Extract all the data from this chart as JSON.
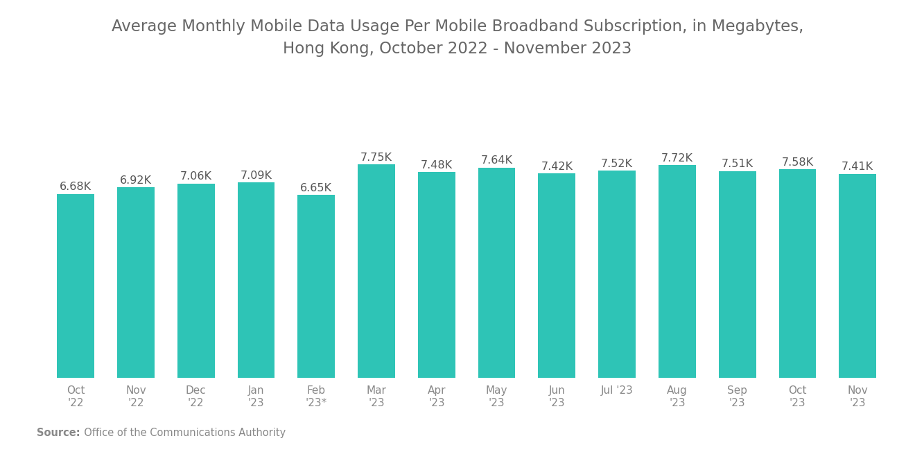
{
  "title": "Average Monthly Mobile Data Usage Per Mobile Broadband Subscription, in Megabytes,\nHong Kong, October 2022 - November 2023",
  "categories": [
    "Oct\n'22",
    "Nov\n'22",
    "Dec\n'22",
    "Jan\n'23",
    "Feb\n'23*",
    "Mar\n'23",
    "Apr\n'23",
    "May\n'23",
    "Jun\n'23",
    "Jul '23",
    "Aug\n'23",
    "Sep\n'23",
    "Oct\n'23",
    "Nov\n'23"
  ],
  "values": [
    6680,
    6920,
    7060,
    7090,
    6650,
    7750,
    7480,
    7640,
    7420,
    7520,
    7720,
    7510,
    7580,
    7410
  ],
  "labels": [
    "6.68K",
    "6.92K",
    "7.06K",
    "7.09K",
    "6.65K",
    "7.75K",
    "7.48K",
    "7.64K",
    "7.42K",
    "7.52K",
    "7.72K",
    "7.51K",
    "7.58K",
    "7.41K"
  ],
  "bar_color": "#2EC4B6",
  "background_color": "#ffffff",
  "title_color": "#666666",
  "label_color": "#555555",
  "tick_color": "#888888",
  "source_bold": "Source:",
  "source_normal": "  Office of the Communications Authority",
  "ylim": [
    0,
    9200
  ],
  "title_fontsize": 16.5,
  "label_fontsize": 11.5,
  "tick_fontsize": 11,
  "source_fontsize": 10.5
}
